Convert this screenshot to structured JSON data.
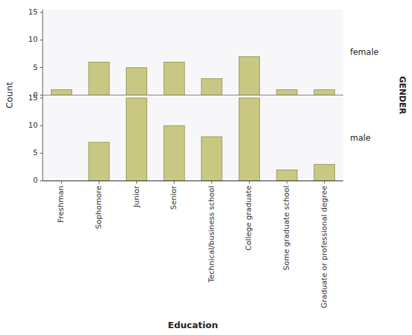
{
  "chart_data": {
    "type": "bar",
    "xlabel": "Education",
    "ylabel": "Count",
    "categories": [
      "Freshman",
      "Sophomore",
      "Junior",
      "Senior",
      "Technical/business school",
      "College graduate",
      "Some graduate school",
      "Graduate or professional degree"
    ],
    "series": [
      {
        "name": "female",
        "values": [
          1,
          6,
          5,
          6,
          3,
          7,
          1,
          1
        ]
      },
      {
        "name": "male",
        "values": [
          0,
          7,
          15,
          10,
          8,
          15,
          2,
          3
        ]
      }
    ],
    "color": "#c8c882",
    "ylim": [
      0,
      15.5
    ],
    "yticks": [
      0,
      5,
      10,
      15
    ],
    "grid": false,
    "annotations": [
      "GENDER"
    ]
  }
}
